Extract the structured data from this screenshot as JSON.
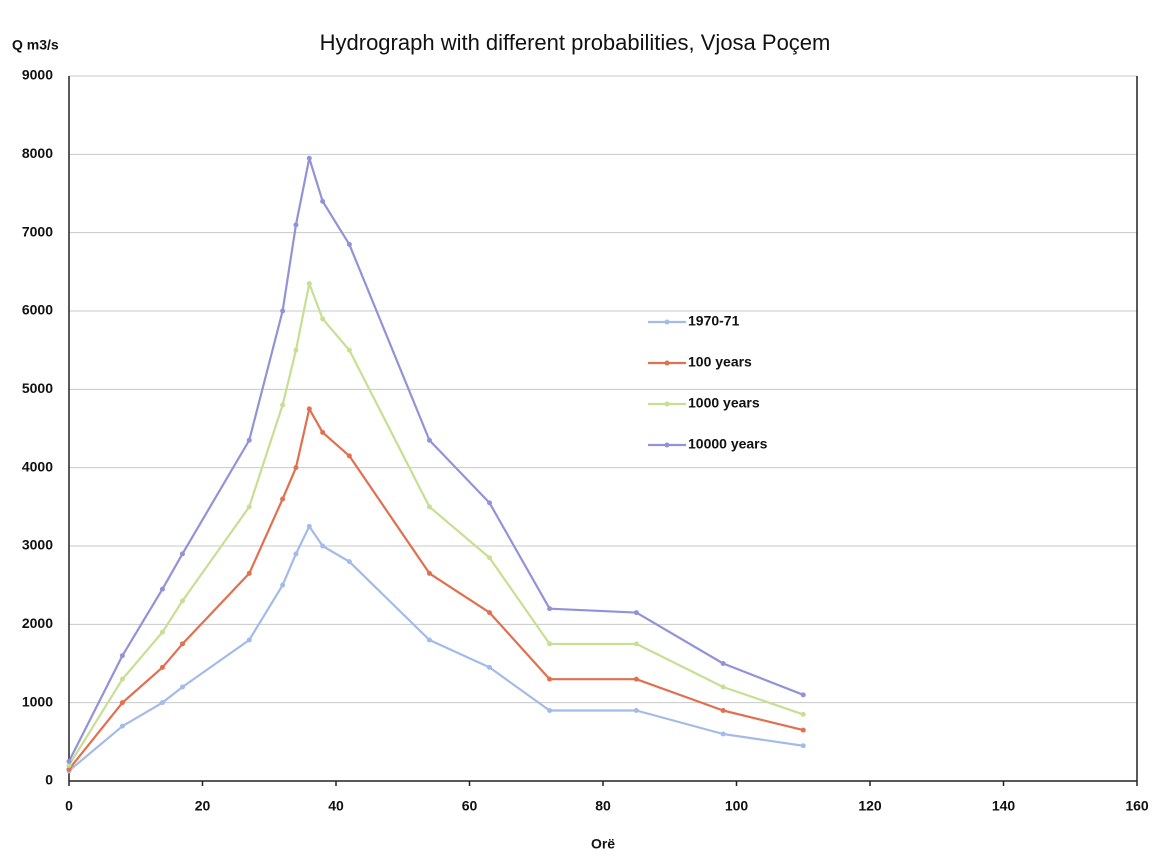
{
  "chart_data": {
    "type": "line",
    "title": "Hydrograph with different probabilities, Vjosa Poçem",
    "y_label": "Q m3/s",
    "x_label": "Orë",
    "x": [
      0,
      8,
      14,
      17,
      27,
      32,
      34,
      36,
      38,
      42,
      54,
      63,
      72,
      85,
      98,
      110
    ],
    "series": [
      {
        "name": "1970-71",
        "color": "#a3bbe8",
        "values": [
          130,
          700,
          1000,
          1200,
          1800,
          2500,
          2900,
          3250,
          3000,
          2800,
          1800,
          1450,
          900,
          900,
          600,
          450
        ]
      },
      {
        "name": "100 years",
        "color": "#e0704e",
        "values": [
          150,
          1000,
          1450,
          1750,
          2650,
          3600,
          4000,
          4750,
          4450,
          4150,
          2650,
          2150,
          1300,
          1300,
          900,
          650
        ]
      },
      {
        "name": "1000 years",
        "color": "#c6df92",
        "values": [
          200,
          1300,
          1900,
          2300,
          3500,
          4800,
          5500,
          6350,
          5900,
          5500,
          3500,
          2850,
          1750,
          1750,
          1200,
          850
        ]
      },
      {
        "name": "10000 years",
        "color": "#9292d8",
        "values": [
          250,
          1600,
          2450,
          2900,
          4350,
          6000,
          7100,
          7950,
          7400,
          6850,
          4350,
          3550,
          2200,
          2150,
          1500,
          1100
        ]
      }
    ],
    "xlim": [
      0,
      160
    ],
    "xticks": [
      0,
      20,
      40,
      60,
      80,
      100,
      120,
      140,
      160
    ],
    "ylim": [
      0,
      9000
    ],
    "yticks": [
      0,
      1000,
      2000,
      3000,
      4000,
      5000,
      6000,
      7000,
      8000,
      9000
    ],
    "grid": true,
    "legend": "center"
  }
}
